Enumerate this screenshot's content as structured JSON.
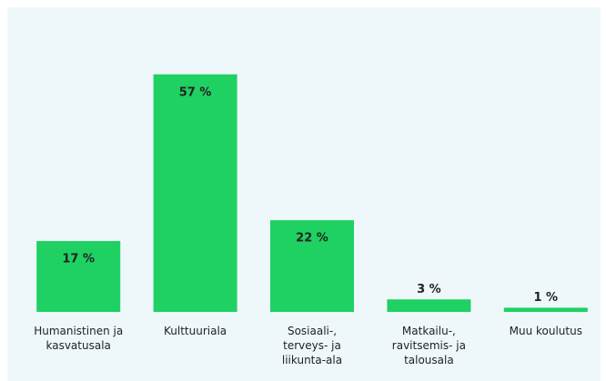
{
  "chart_data": {
    "type": "bar",
    "categories": [
      "Humanistinen ja\nkasvatusala",
      "Kulttuuriala",
      "Sosiaali-,\nterveys- ja\nliikunta-ala",
      "Matkailu-,\nravitsemis- ja\ntalousala",
      "Muu koulutus"
    ],
    "values": [
      17,
      57,
      22,
      3,
      1
    ],
    "value_labels": [
      "17 %",
      "57 %",
      "22 %",
      "3 %",
      "1 %"
    ],
    "color": "#1fd162",
    "ylim": [
      0,
      60
    ]
  }
}
